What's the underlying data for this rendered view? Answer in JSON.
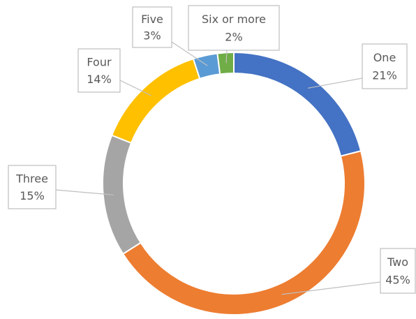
{
  "chart_data": {
    "type": "donut",
    "categories": [
      "One",
      "Two",
      "Three",
      "Four",
      "Five",
      "Six or more"
    ],
    "values": [
      21,
      45,
      15,
      14,
      3,
      2
    ],
    "value_labels": [
      "21%",
      "45%",
      "15%",
      "14%",
      "3%",
      "2%"
    ],
    "colors": [
      "#4472c4",
      "#ed7d31",
      "#a5a5a5",
      "#ffc000",
      "#5b9bd5",
      "#70ad47"
    ]
  }
}
